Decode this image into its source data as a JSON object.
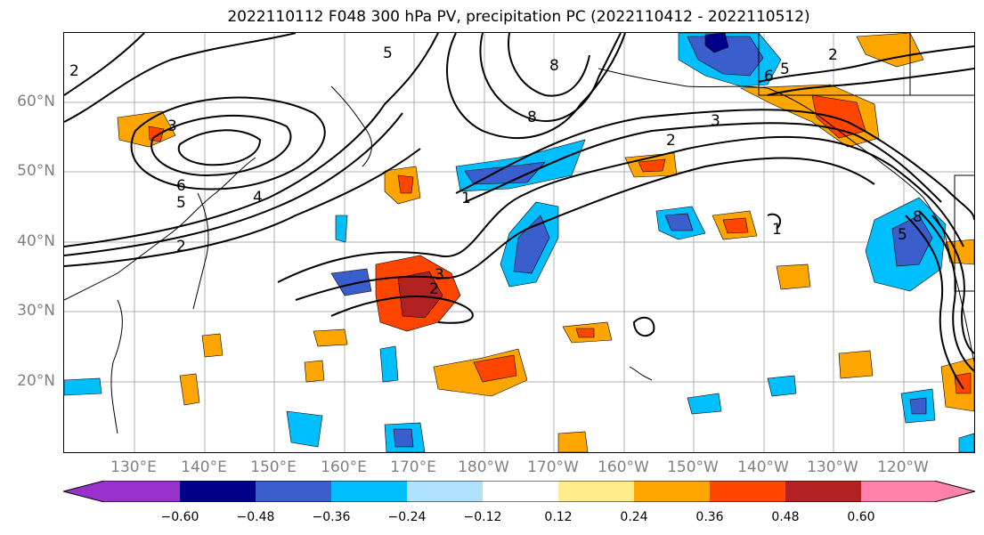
{
  "title": "2022110112 F048 300 hPa PV, precipitation PC (2022110412 - 2022110512)",
  "lat_labels": [
    "60°N",
    "50°N",
    "40°N",
    "30°N",
    "20°N"
  ],
  "lon_labels": [
    "130°E",
    "140°E",
    "150°E",
    "160°E",
    "170°E",
    "180°W",
    "170°W",
    "160°W",
    "150°W",
    "140°W",
    "130°W",
    "120°W"
  ],
  "colorbar": {
    "ticks": [
      "−0.60",
      "−0.48",
      "−0.36",
      "−0.24",
      "−0.12",
      "0.12",
      "0.24",
      "0.36",
      "0.48",
      "0.60"
    ],
    "colors": [
      "#9932cc",
      "#00008b",
      "#3a5fcd",
      "#00bfff",
      "#b0e2ff",
      "#ffffff",
      "#ffec8b",
      "#ffa500",
      "#ff4500",
      "#b22222",
      "#ff82ab"
    ]
  },
  "contour_labels": [
    "1",
    "2",
    "3",
    "4",
    "5",
    "6",
    "8"
  ]
}
